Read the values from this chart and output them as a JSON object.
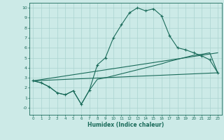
{
  "xlabel": "Humidex (Indice chaleur)",
  "background_color": "#cceae7",
  "grid_color": "#aad4d0",
  "line_color": "#1a6b5a",
  "xlim": [
    -0.5,
    23.5
  ],
  "ylim": [
    -0.7,
    10.5
  ],
  "xticks": [
    0,
    1,
    2,
    3,
    4,
    5,
    6,
    7,
    8,
    9,
    10,
    11,
    12,
    13,
    14,
    15,
    16,
    17,
    18,
    19,
    20,
    21,
    22,
    23
  ],
  "yticks": [
    0,
    1,
    2,
    3,
    4,
    5,
    6,
    7,
    8,
    9,
    10
  ],
  "ytick_labels": [
    "-0",
    "1",
    "2",
    "3",
    "4",
    "5",
    "6",
    "7",
    "8",
    "9",
    "10"
  ],
  "curve1_x": [
    0,
    1,
    2,
    3,
    4,
    5,
    6,
    7,
    8,
    9,
    10,
    11,
    12,
    13,
    14,
    15,
    16,
    17,
    18,
    19,
    20,
    21,
    22,
    23
  ],
  "curve1_y": [
    2.7,
    2.5,
    2.1,
    1.5,
    1.3,
    1.7,
    0.35,
    1.75,
    4.3,
    5.0,
    7.0,
    8.3,
    9.5,
    10.0,
    9.7,
    9.9,
    9.2,
    7.2,
    6.0,
    5.8,
    5.5,
    5.2,
    4.8,
    3.5
  ],
  "curve2_x": [
    0,
    1,
    2,
    3,
    4,
    5,
    6,
    7,
    8,
    9,
    10,
    11,
    12,
    13,
    14,
    15,
    16,
    17,
    18,
    19,
    20,
    21,
    22,
    23
  ],
  "curve2_y": [
    2.7,
    2.5,
    2.1,
    1.5,
    1.3,
    1.7,
    0.35,
    1.75,
    2.85,
    3.0,
    3.2,
    3.4,
    3.6,
    3.8,
    4.0,
    4.2,
    4.4,
    4.65,
    4.85,
    5.05,
    5.25,
    5.35,
    5.5,
    3.5
  ],
  "curve3_x": [
    0,
    23
  ],
  "curve3_y": [
    2.7,
    3.5
  ],
  "curve4_x": [
    0,
    23
  ],
  "curve4_y": [
    2.7,
    5.5
  ]
}
